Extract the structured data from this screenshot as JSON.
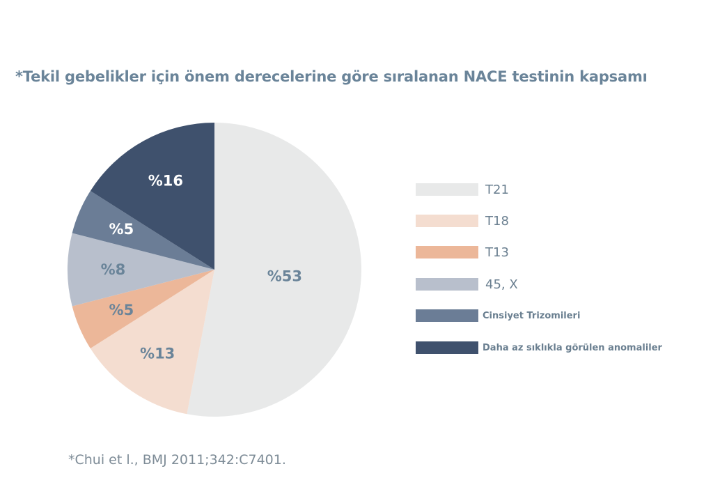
{
  "chart_data": {
    "type": "pie",
    "title": "*Tekil gebelikler için önem derecelerine göre sıralanan NACE testinin kapsamı",
    "slices": [
      {
        "name": "T21",
        "value": 53,
        "label": "%53",
        "color": "#e8e9e9",
        "label_color": "#6a8499"
      },
      {
        "name": "T18",
        "value": 13,
        "label": "%13",
        "color": "#f4ddd0",
        "label_color": "#6a8499"
      },
      {
        "name": "T13",
        "value": 5,
        "label": "%5",
        "color": "#ecb799",
        "label_color": "#6a8499"
      },
      {
        "name": "45, X",
        "value": 8,
        "label": "%8",
        "color": "#b8bfcc",
        "label_color": "#6a8499"
      },
      {
        "name": "Cinsiyet Trizomileri",
        "value": 5,
        "label": "%5",
        "color": "#6b7d96",
        "label_color": "#ffffff"
      },
      {
        "name": "Daha az sıklıkla görülen anomaliler",
        "value": 16,
        "label": "%16",
        "color": "#3f516d",
        "label_color": "#ffffff"
      }
    ],
    "legend_position": "right"
  },
  "source_note": "*Chui et l., BMJ 2011;342:C7401."
}
